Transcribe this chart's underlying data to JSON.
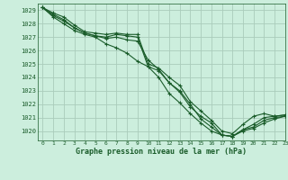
{
  "title": "Graphe pression niveau de la mer (hPa)",
  "bg_color": "#cceedd",
  "grid_color": "#aaccbb",
  "line_color": "#1a5c2a",
  "xlim": [
    -0.5,
    23
  ],
  "ylim": [
    1019.3,
    1029.5
  ],
  "yticks": [
    1020,
    1021,
    1022,
    1023,
    1024,
    1025,
    1026,
    1027,
    1028,
    1029
  ],
  "xticks": [
    0,
    1,
    2,
    3,
    4,
    5,
    6,
    7,
    8,
    9,
    10,
    11,
    12,
    13,
    14,
    15,
    16,
    17,
    18,
    19,
    20,
    21,
    22,
    23
  ],
  "series": [
    [
      1029.2,
      1028.8,
      1028.5,
      1027.9,
      1027.4,
      1027.3,
      1027.2,
      1027.3,
      1027.2,
      1027.2,
      1025.0,
      1024.7,
      1024.0,
      1023.4,
      1022.2,
      1021.5,
      1020.8,
      1020.0,
      1019.8,
      1020.5,
      1021.1,
      1021.3,
      1021.1,
      1021.2
    ],
    [
      1029.2,
      1028.7,
      1028.3,
      1027.7,
      1027.3,
      1027.1,
      1027.0,
      1027.2,
      1027.1,
      1027.0,
      1024.8,
      1024.5,
      1023.6,
      1022.9,
      1021.8,
      1021.1,
      1020.6,
      1019.7,
      1019.6,
      1020.1,
      1020.5,
      1021.0,
      1021.1,
      1021.2
    ],
    [
      1029.2,
      1028.6,
      1028.2,
      1027.7,
      1027.3,
      1027.1,
      1026.9,
      1027.0,
      1026.8,
      1026.7,
      1025.3,
      1024.6,
      1023.6,
      1023.0,
      1022.0,
      1020.9,
      1020.3,
      1019.7,
      1019.6,
      1020.1,
      1020.3,
      1020.8,
      1021.0,
      1021.1
    ],
    [
      1029.2,
      1028.5,
      1028.0,
      1027.5,
      1027.2,
      1027.0,
      1026.5,
      1026.2,
      1025.8,
      1025.2,
      1024.8,
      1024.0,
      1022.8,
      1022.1,
      1021.3,
      1020.6,
      1020.0,
      1019.7,
      1019.6,
      1020.0,
      1020.2,
      1020.6,
      1020.9,
      1021.1
    ]
  ]
}
